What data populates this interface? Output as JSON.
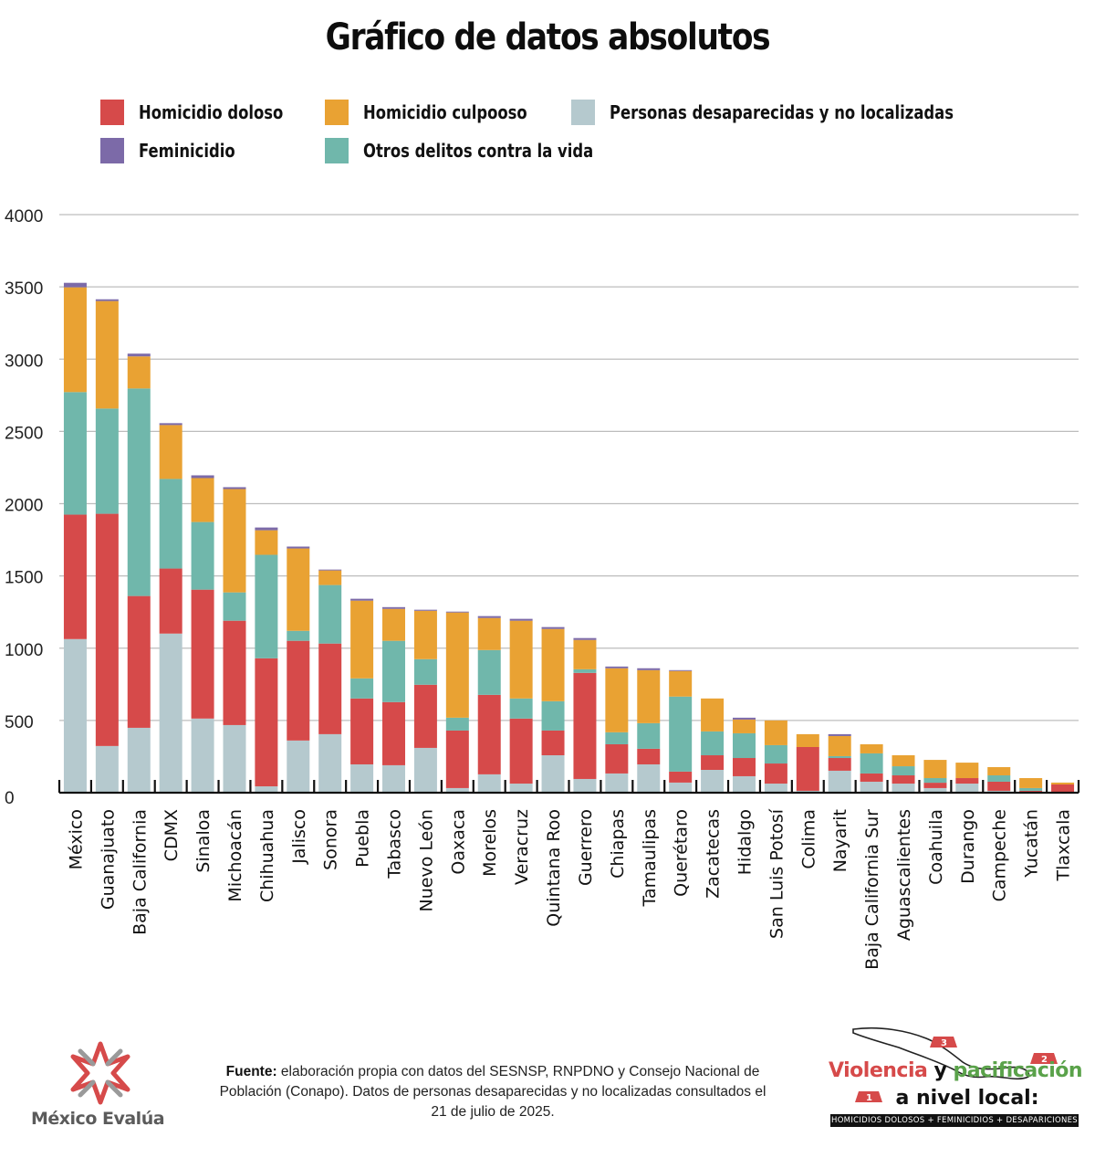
{
  "title": "Gráfico de datos absolutos",
  "legend": [
    {
      "key": "doloso",
      "label": "Homicidio doloso",
      "color": "#d64a4a"
    },
    {
      "key": "culposo",
      "label": "Homicidio culpooso",
      "color": "#e9a233"
    },
    {
      "key": "desaparecidas",
      "label": "Personas desaparecidas y no localizadas",
      "color": "#b5c9ce"
    },
    {
      "key": "feminicidio",
      "label": "Feminicidio",
      "color": "#7c6aa8"
    },
    {
      "key": "otros",
      "label": "Otros delitos contra la vida",
      "color": "#70b7ab"
    }
  ],
  "chart_data": {
    "type": "bar",
    "stacked": true,
    "title": "Gráfico de datos absolutos",
    "xlabel": "",
    "ylabel": "",
    "ylim": [
      0,
      4000
    ],
    "yticks": [
      0,
      500,
      1000,
      1500,
      2000,
      2500,
      3000,
      3500,
      4000
    ],
    "grid": true,
    "legend_position": "top",
    "categories": [
      "México",
      "Guanajuato",
      "Baja California",
      "CDMX",
      "Sinaloa",
      "Michoacán",
      "Chihuahua",
      "Jalisco",
      "Sonora",
      "Puebla",
      "Tabasco",
      "Nuevo León",
      "Oaxaca",
      "Morelos",
      "Veracruz",
      "Quintana Roo",
      "Guerrero",
      "Chiapas",
      "Tamaulipas",
      "Querétaro",
      "Zacatecas",
      "Hidalgo",
      "San Luis Potosí",
      "Colima",
      "Nayarit",
      "Baja California Sur",
      "Aguascalientes",
      "Coahuila",
      "Durango",
      "Campeche",
      "Yucatán",
      "Tlaxcala"
    ],
    "series": [
      {
        "name": "Personas desaparecidas y no localizadas",
        "color": "#b5c9ce",
        "values": [
          1063,
          323,
          449,
          1101,
          513,
          468,
          44,
          361,
          405,
          196,
          190,
          310,
          32,
          127,
          63,
          259,
          95,
          133,
          196,
          70,
          158,
          114,
          63,
          13,
          152,
          76,
          63,
          32,
          63,
          13,
          6,
          0
        ]
      },
      {
        "name": "Homicidio doloso",
        "color": "#d64a4a",
        "values": [
          861,
          1607,
          912,
          450,
          892,
          722,
          886,
          690,
          627,
          456,
          437,
          437,
          398,
          550,
          450,
          171,
          734,
          202,
          108,
          76,
          101,
          126,
          139,
          303,
          88,
          57,
          57,
          37,
          38,
          63,
          7,
          57
        ]
      },
      {
        "name": "Otros delitos contra la vida",
        "color": "#70b7ab",
        "values": [
          848,
          728,
          1436,
          620,
          468,
          196,
          716,
          69,
          405,
          139,
          424,
          177,
          89,
          310,
          139,
          203,
          25,
          83,
          177,
          519,
          165,
          171,
          127,
          0,
          13,
          139,
          63,
          32,
          0,
          44,
          19,
          0
        ]
      },
      {
        "name": "Homicidio culpooso",
        "color": "#e9a233",
        "values": [
          725,
          744,
          222,
          373,
          304,
          715,
          170,
          570,
          101,
          538,
          221,
          335,
          728,
          222,
          538,
          500,
          203,
          443,
          367,
          177,
          228,
          95,
          171,
          89,
          139,
          63,
          76,
          126,
          107,
          57,
          69,
          13
        ]
      },
      {
        "name": "Feminicidio",
        "color": "#7c6aa8",
        "values": [
          31,
          12,
          19,
          13,
          19,
          13,
          19,
          13,
          6,
          13,
          12,
          7,
          6,
          13,
          13,
          13,
          13,
          12,
          13,
          6,
          0,
          13,
          0,
          0,
          13,
          0,
          0,
          0,
          0,
          0,
          0,
          0
        ]
      }
    ]
  },
  "footer": {
    "source_label": "Fuente:",
    "source_text": " elaboración propia con datos del SESNSP, RNPDNO y Consejo Nacional de Población (Conapo). Datos de personas desaparecidas y no localizadas consultados el 21 de julio de 2025.",
    "logo_name": "México Evalúa",
    "badge": {
      "word1": "Violencia",
      "word2": " y ",
      "word3": "pacificación",
      "line2": "a nivel local:",
      "subtitle": "HOMICIDIOS DOLOSOS + FEMINICIDIOS + DESAPARICIONES",
      "markers": [
        "1",
        "2",
        "3"
      ]
    }
  }
}
